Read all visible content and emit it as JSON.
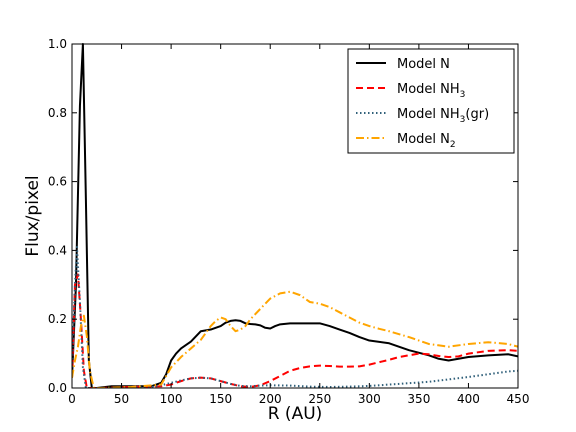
{
  "chart_data": {
    "type": "line",
    "title": "",
    "xlabel": "R (AU)",
    "ylabel": "Flux/pixel",
    "xlim": [
      0,
      450
    ],
    "ylim": [
      0.0,
      1.0
    ],
    "xticks": [
      0,
      50,
      100,
      150,
      200,
      250,
      300,
      350,
      400,
      450
    ],
    "xtick_labels": [
      "0",
      "50",
      "100",
      "150",
      "200",
      "250",
      "300",
      "350",
      "400",
      "450"
    ],
    "yticks": [
      0.0,
      0.2,
      0.4,
      0.6,
      0.8,
      1.0
    ],
    "ytick_labels": [
      "0.0",
      "0.2",
      "0.4",
      "0.6",
      "0.8",
      "1.0"
    ],
    "grid": false,
    "legend_position": "top-right",
    "series": [
      {
        "name": "Model N",
        "legend_base": "Model N",
        "legend_sub": "",
        "legend_suffix": "",
        "color": "#000000",
        "dash": "",
        "x": [
          0,
          4,
          8,
          11,
          14,
          17,
          20,
          25,
          40,
          60,
          80,
          90,
          95,
          100,
          105,
          110,
          120,
          130,
          140,
          145,
          150,
          155,
          160,
          165,
          170,
          175,
          180,
          185,
          190,
          195,
          200,
          205,
          210,
          220,
          230,
          240,
          250,
          260,
          270,
          280,
          290,
          300,
          320,
          340,
          360,
          370,
          380,
          400,
          420,
          440,
          450
        ],
        "y": [
          0.03,
          0.3,
          0.82,
          1.0,
          0.55,
          0.08,
          0.0,
          0.0,
          0.005,
          0.005,
          0.005,
          0.015,
          0.04,
          0.08,
          0.1,
          0.115,
          0.135,
          0.165,
          0.17,
          0.175,
          0.18,
          0.19,
          0.195,
          0.197,
          0.195,
          0.188,
          0.186,
          0.185,
          0.182,
          0.175,
          0.173,
          0.18,
          0.185,
          0.188,
          0.188,
          0.188,
          0.188,
          0.18,
          0.17,
          0.16,
          0.148,
          0.138,
          0.13,
          0.11,
          0.095,
          0.085,
          0.08,
          0.09,
          0.095,
          0.098,
          0.092
        ]
      },
      {
        "name": "Model NH3",
        "legend_base": "Model NH",
        "legend_sub": "3",
        "legend_suffix": "",
        "color": "#ff0000",
        "dash": "7,4",
        "x": [
          0,
          3,
          6,
          9,
          12,
          15,
          20,
          30,
          60,
          90,
          100,
          110,
          120,
          130,
          140,
          150,
          160,
          170,
          180,
          190,
          200,
          210,
          220,
          230,
          240,
          250,
          260,
          270,
          280,
          290,
          300,
          310,
          320,
          330,
          340,
          350,
          360,
          370,
          380,
          390,
          400,
          420,
          440,
          450
        ],
        "y": [
          0.03,
          0.3,
          0.33,
          0.2,
          0.05,
          0.0,
          0.0,
          0.0,
          0.003,
          0.005,
          0.01,
          0.02,
          0.028,
          0.03,
          0.028,
          0.02,
          0.012,
          0.005,
          0.003,
          0.008,
          0.02,
          0.035,
          0.05,
          0.058,
          0.063,
          0.065,
          0.064,
          0.062,
          0.062,
          0.063,
          0.068,
          0.075,
          0.082,
          0.09,
          0.095,
          0.1,
          0.098,
          0.093,
          0.09,
          0.092,
          0.1,
          0.108,
          0.11,
          0.108
        ]
      },
      {
        "name": "Model NH3 (gr)",
        "legend_base": "Model NH",
        "legend_sub": "3",
        "legend_suffix": "(gr)",
        "color": "#30607a",
        "dash": "1.5,2.5",
        "x": [
          0,
          3,
          5,
          8,
          11,
          14,
          20,
          40,
          80,
          90,
          100,
          110,
          120,
          130,
          140,
          150,
          160,
          170,
          180,
          190,
          200,
          220,
          240,
          260,
          280,
          300,
          320,
          340,
          360,
          380,
          400,
          420,
          440,
          450
        ],
        "y": [
          0.06,
          0.3,
          0.41,
          0.25,
          0.06,
          0.0,
          0.0,
          0.0,
          0.003,
          0.008,
          0.015,
          0.022,
          0.028,
          0.03,
          0.028,
          0.02,
          0.012,
          0.006,
          0.005,
          0.007,
          0.008,
          0.007,
          0.004,
          0.003,
          0.004,
          0.006,
          0.01,
          0.014,
          0.018,
          0.025,
          0.032,
          0.04,
          0.048,
          0.05
        ]
      },
      {
        "name": "Model N2",
        "legend_base": "Model N",
        "legend_sub": "2",
        "legend_suffix": "",
        "color": "#ffa500",
        "dash": "8,3,1.5,3",
        "x": [
          0,
          3,
          6,
          9,
          12,
          15,
          18,
          22,
          30,
          60,
          90,
          100,
          110,
          120,
          130,
          140,
          145,
          150,
          155,
          160,
          165,
          170,
          175,
          180,
          190,
          200,
          210,
          220,
          230,
          240,
          250,
          260,
          270,
          280,
          290,
          300,
          310,
          320,
          340,
          360,
          380,
          400,
          420,
          440,
          450
        ],
        "y": [
          0.03,
          0.08,
          0.12,
          0.18,
          0.21,
          0.15,
          0.05,
          0.0,
          0.0,
          0.003,
          0.01,
          0.06,
          0.09,
          0.115,
          0.14,
          0.18,
          0.195,
          0.205,
          0.2,
          0.18,
          0.165,
          0.17,
          0.18,
          0.2,
          0.23,
          0.26,
          0.275,
          0.28,
          0.27,
          0.25,
          0.245,
          0.235,
          0.22,
          0.205,
          0.19,
          0.18,
          0.172,
          0.165,
          0.148,
          0.128,
          0.12,
          0.128,
          0.133,
          0.128,
          0.12
        ]
      }
    ]
  }
}
